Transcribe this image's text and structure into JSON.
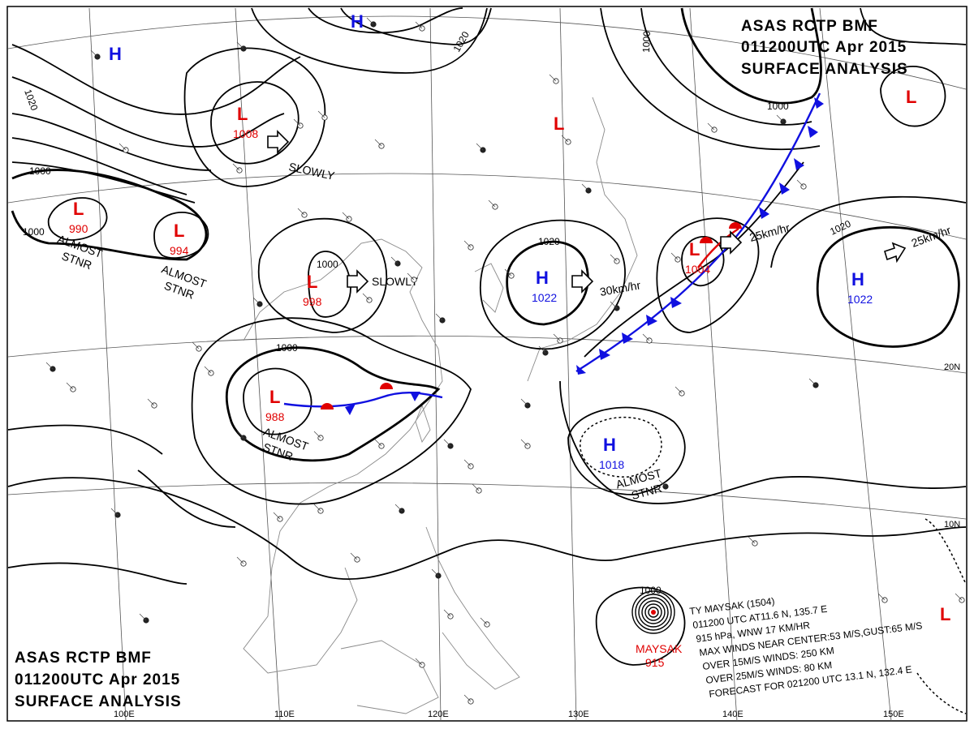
{
  "header": {
    "line1": "ASAS    RCTP    BMF",
    "line2": "011200UTC    Apr    2015",
    "line3": "SURFACE  ANALYSIS"
  },
  "grid_labels": {
    "lon_100": "100E",
    "lon_110": "110E",
    "lon_120": "120E",
    "lon_130": "130E",
    "lon_140": "140E",
    "lon_150": "150E",
    "lat_20": "20N",
    "lat_10": "10N"
  },
  "isobar_labels": [
    "1020",
    "1000",
    "1000",
    "1000",
    "1020",
    "1000",
    "1000",
    "1000",
    "1020",
    "1020",
    "1000"
  ],
  "systems": [
    {
      "type": "L",
      "pressure": "990"
    },
    {
      "type": "L",
      "pressure": "994"
    },
    {
      "type": "L",
      "pressure": "1008"
    },
    {
      "type": "L",
      "pressure": "998"
    },
    {
      "type": "L",
      "pressure": "988"
    },
    {
      "type": "L",
      "pressure": "1004"
    },
    {
      "type": "L",
      "pressure": ""
    },
    {
      "type": "L",
      "pressure": ""
    },
    {
      "type": "L",
      "pressure": ""
    },
    {
      "type": "H",
      "pressure": ""
    },
    {
      "type": "H",
      "pressure": ""
    },
    {
      "type": "H",
      "pressure": "1022"
    },
    {
      "type": "H",
      "pressure": "1022"
    },
    {
      "type": "H",
      "pressure": "1018"
    }
  ],
  "motion_labels": {
    "m1": "SLOWLY",
    "m2": "SLOWLY",
    "m3": "30km/hr",
    "m4": "25km/hr",
    "m5": "25km/hr"
  },
  "stnr_labels": [
    {
      "l1": "ALMOST",
      "l2": "STNR"
    },
    {
      "l1": "ALMOST",
      "l2": "STNR"
    },
    {
      "l1": "ALMOST",
      "l2": "STNR"
    },
    {
      "l1": "ALMOST",
      "l2": "STNR"
    }
  ],
  "typhoon": {
    "name_label": "MAYSAK",
    "pressure": "915",
    "isobar": "1000",
    "lines": [
      "TY  MAYSAK  (1504)",
      "011200 UTC  AT11.6 N, 135.7 E",
      "915 hPa, WNW  17 KM/HR",
      "MAX WINDS NEAR CENTER:53 M/S,GUST:65 M/S",
      "OVER 15M/S WINDS: 250 KM",
      "OVER 25M/S WINDS: 80 KM",
      "FORECAST FOR 021200 UTC 13.1 N, 132.4 E"
    ]
  },
  "colors": {
    "low": "#e00000",
    "high": "#1010e0",
    "cold_front": "#1010e0",
    "warm_front": "#e00000",
    "isobar": "#000000"
  }
}
